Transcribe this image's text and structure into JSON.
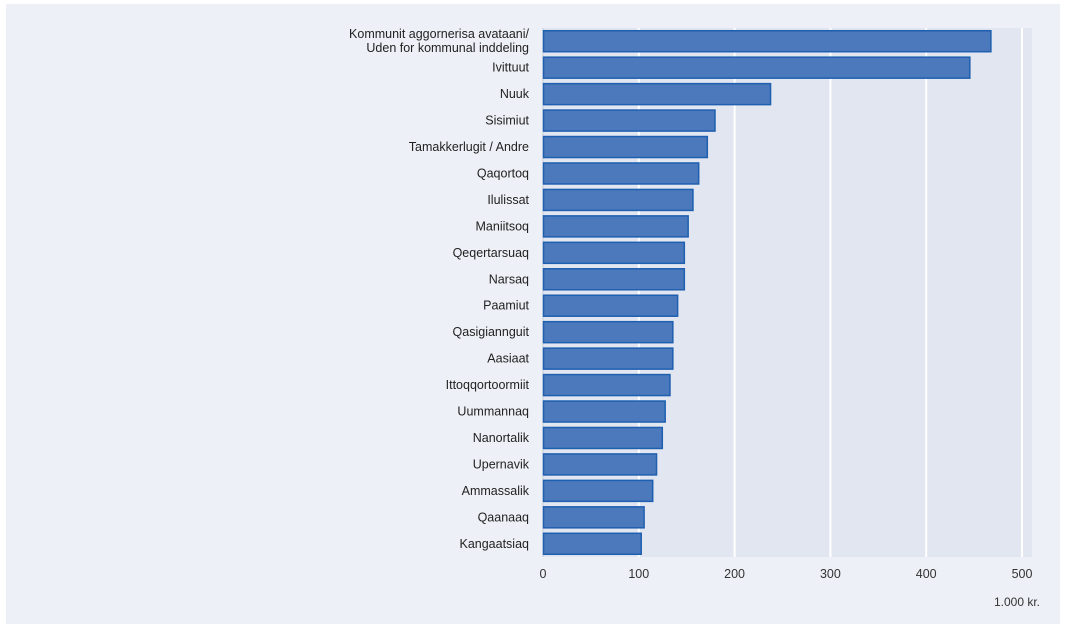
{
  "chart_data": {
    "type": "bar",
    "orientation": "horizontal",
    "categories": [
      [
        "Kommunit aggornerisa avataani/",
        "Uden for kommunal inddeling"
      ],
      [
        "Ivittuut"
      ],
      [
        "Nuuk"
      ],
      [
        "Sisimiut"
      ],
      [
        "Tamakkerlugit / Andre"
      ],
      [
        "Qaqortoq"
      ],
      [
        "Ilulissat"
      ],
      [
        "Maniitsoq"
      ],
      [
        "Qeqertarsuaq"
      ],
      [
        "Narsaq"
      ],
      [
        "Paamiut"
      ],
      [
        "Qasigiannguit"
      ],
      [
        "Aasiaat"
      ],
      [
        "Ittoqqortoormiit"
      ],
      [
        "Uummannaq"
      ],
      [
        "Nanortalik"
      ],
      [
        "Upernavik"
      ],
      [
        "Ammassalik"
      ],
      [
        "Qaanaaq"
      ],
      [
        "Kangaatsiaq"
      ]
    ],
    "values": [
      467,
      445,
      237,
      179,
      171,
      162,
      156,
      151,
      147,
      147,
      140,
      135,
      135,
      132,
      127,
      124,
      118,
      114,
      105,
      102
    ],
    "xlim": [
      0,
      500
    ],
    "xticks": [
      "0",
      "100",
      "200",
      "300",
      "400",
      "500"
    ],
    "unit": "1.000 kr.",
    "grid": true,
    "colors": {
      "bar_fill": "#4b79bb",
      "bar_stroke": "#1f5fb0",
      "plot_bg": "#e2e6f0",
      "panel_bg": "#edf0f6",
      "grid": "#ffffff"
    }
  }
}
